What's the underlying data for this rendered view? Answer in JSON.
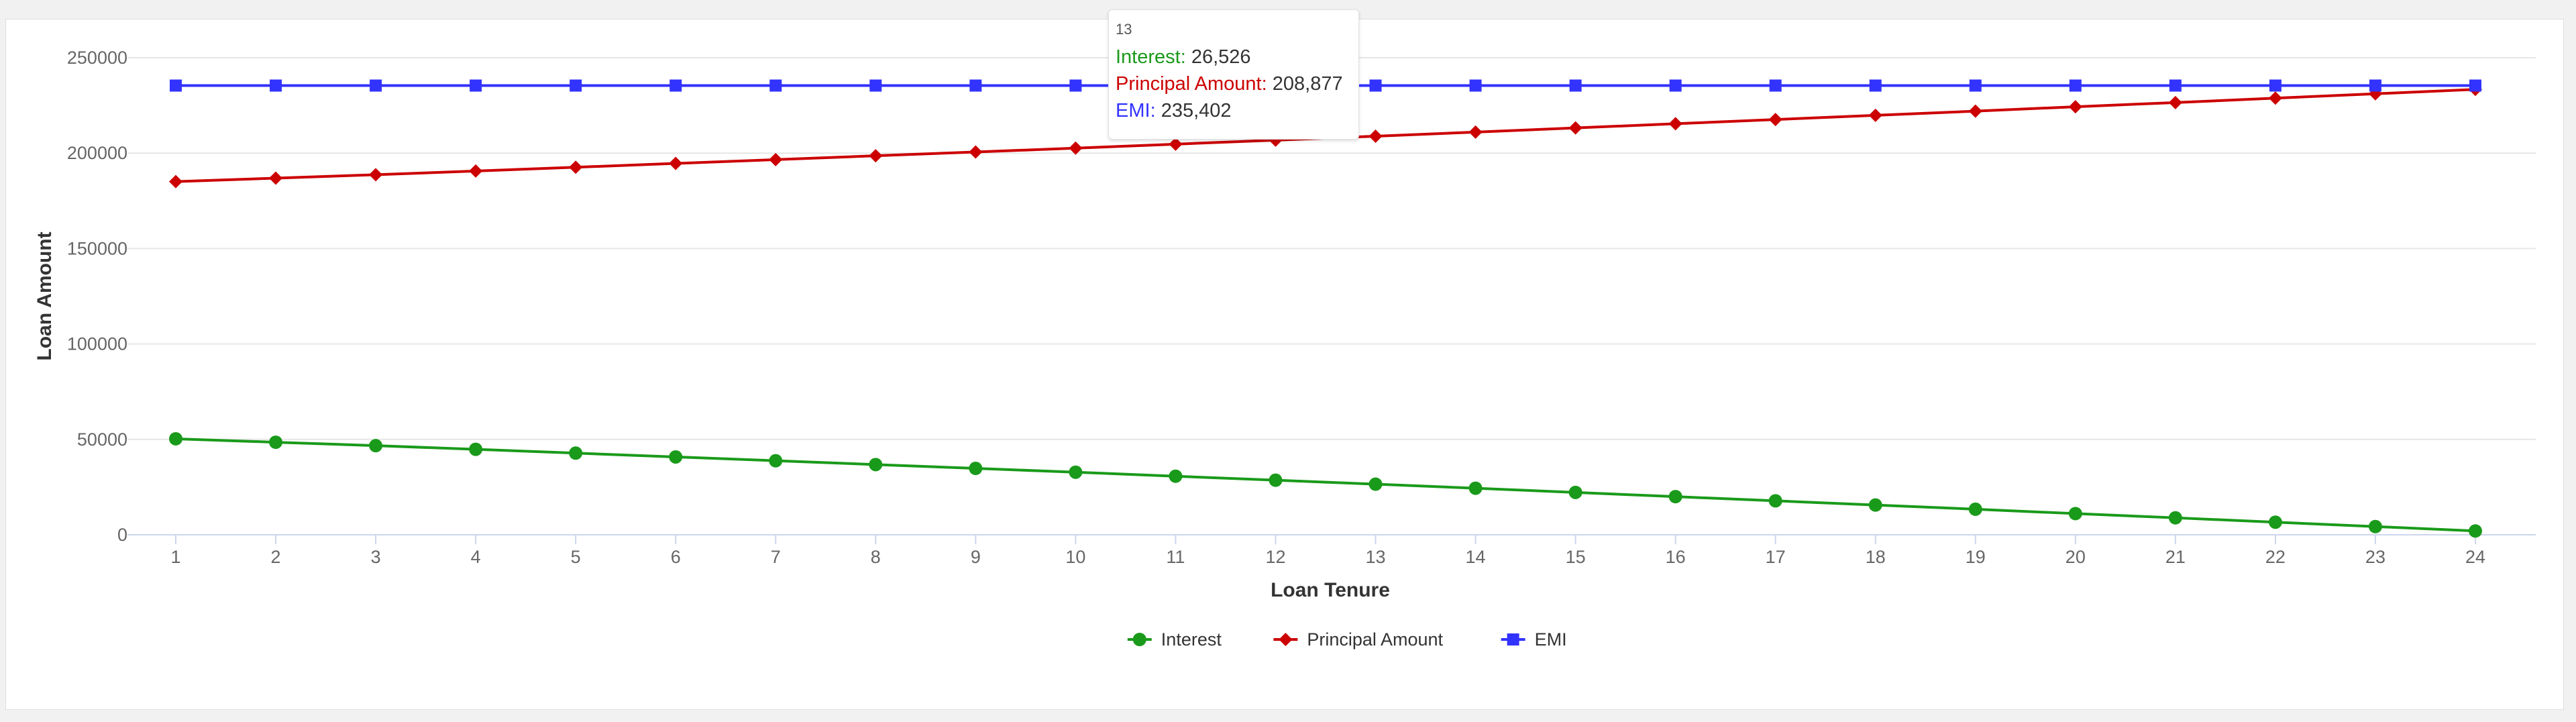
{
  "chart_data": {
    "type": "line",
    "title": "",
    "xlabel": "Loan Tenure",
    "ylabel": "Loan Amount",
    "x": [
      1,
      2,
      3,
      4,
      5,
      6,
      7,
      8,
      9,
      10,
      11,
      12,
      13,
      14,
      15,
      16,
      17,
      18,
      19,
      20,
      21,
      22,
      23,
      24
    ],
    "ylim": [
      0,
      250000
    ],
    "yticks": [
      0,
      50000,
      100000,
      150000,
      200000,
      250000
    ],
    "ytick_labels": [
      "0",
      "50000",
      "100000",
      "150000",
      "200000",
      "250000"
    ],
    "grid": true,
    "legend_position": "bottom-center",
    "series": [
      {
        "name": "Interest",
        "color": "#1a9a1a",
        "marker": "circle",
        "values": [
          50300,
          48500,
          46700,
          44800,
          42800,
          40800,
          38800,
          36800,
          34800,
          32800,
          30700,
          28600,
          26526,
          24400,
          22200,
          20000,
          17800,
          15600,
          13400,
          11100,
          8900,
          6600,
          4300,
          2000
        ]
      },
      {
        "name": "Principal Amount",
        "color": "#cc0000",
        "marker": "diamond",
        "values": [
          185100,
          186900,
          188700,
          190600,
          192600,
          194600,
          196600,
          198600,
          200600,
          202600,
          204700,
          206800,
          208877,
          211000,
          213200,
          215400,
          217600,
          219800,
          222000,
          224300,
          226500,
          228800,
          231100,
          233400
        ]
      },
      {
        "name": "EMI",
        "color": "#3333ff",
        "marker": "square",
        "values": [
          235402,
          235402,
          235402,
          235402,
          235402,
          235402,
          235402,
          235402,
          235402,
          235402,
          235402,
          235402,
          235402,
          235402,
          235402,
          235402,
          235402,
          235402,
          235402,
          235402,
          235402,
          235402,
          235402,
          235402
        ]
      }
    ]
  },
  "tooltip": {
    "header": "13",
    "rows": [
      {
        "label": "Interest",
        "value": "26,526",
        "color": "#1a9a1a"
      },
      {
        "label": "Principal Amount",
        "value": "208,877",
        "color": "#cc0000"
      },
      {
        "label": "EMI",
        "value": "235,402",
        "color": "#3333ff"
      }
    ]
  }
}
